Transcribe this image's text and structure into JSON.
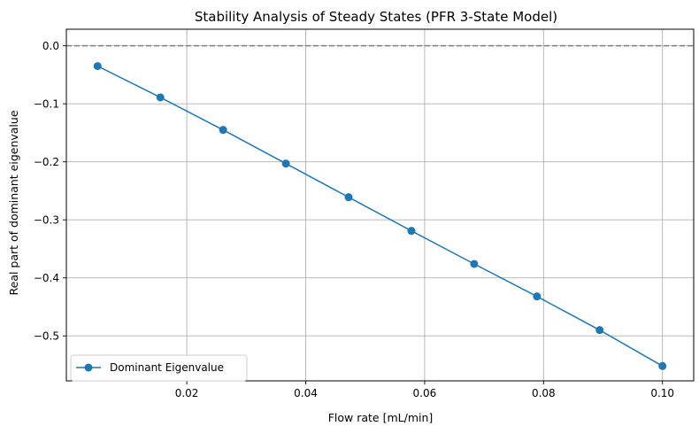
{
  "chart_data": {
    "type": "line",
    "title": "Stability Analysis of Steady States (PFR 3-State Model)",
    "xlabel": "Flow rate [mL/min]",
    "ylabel": "Real part of dominant eigenvalue",
    "xlim": [
      -0.00025,
      0.10525
    ],
    "ylim": [
      -0.5775,
      0.0285
    ],
    "xticks": [
      0.02,
      0.04,
      0.06,
      0.08,
      0.1
    ],
    "xtick_labels": [
      "0.02",
      "0.04",
      "0.06",
      "0.08",
      "0.10"
    ],
    "yticks": [
      0.0,
      -0.1,
      -0.2,
      -0.3,
      -0.4,
      -0.5
    ],
    "ytick_labels": [
      "0.0",
      "−0.1",
      "−0.2",
      "−0.3",
      "−0.4",
      "−0.5"
    ],
    "grid": true,
    "reference_line": {
      "y": 0.0,
      "style": "dashed",
      "color": "#808080"
    },
    "legend_position": "lower-left",
    "series": [
      {
        "name": "Dominant Eigenvalue",
        "color": "#1f77b4",
        "marker": "circle",
        "x": [
          0.005,
          0.01556,
          0.02611,
          0.03667,
          0.04722,
          0.05778,
          0.06833,
          0.07889,
          0.08944,
          0.1
        ],
        "y": [
          -0.035,
          -0.089,
          -0.145,
          -0.203,
          -0.261,
          -0.319,
          -0.376,
          -0.432,
          -0.49,
          -0.552
        ]
      }
    ]
  }
}
